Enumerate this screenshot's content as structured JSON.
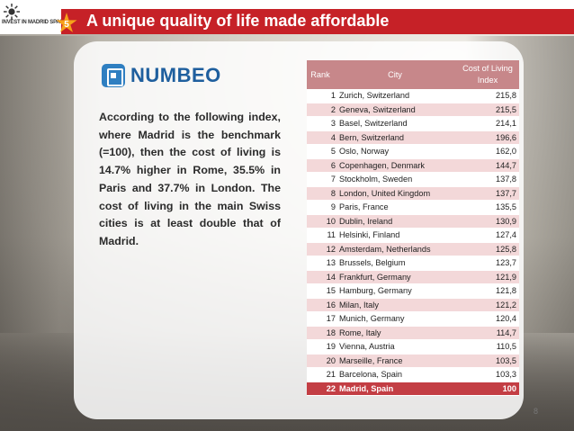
{
  "header": {
    "logo_text": "INVEST IN MADRID SPAIN",
    "badge_number": "5",
    "title": "A unique quality of life made affordable"
  },
  "brand": {
    "name": "NUMBEO",
    "icon": "numbeo-logo-icon",
    "color": "#1f5f9e"
  },
  "paragraph": "According to the following index, where Madrid is the benchmark (=100), then the cost of living is 14.7% higher in Rome, 35.5% in Paris and 37.7% in London. The cost of living in the main Swiss cities is at least double that of Madrid.",
  "table": {
    "headers": {
      "rank": "Rank",
      "city": "City",
      "index": "Cost of Living Index"
    },
    "rows": [
      {
        "rank": "1",
        "city": "Zurich, Switzerland",
        "index": "215,8"
      },
      {
        "rank": "2",
        "city": "Geneva, Switzerland",
        "index": "215,5"
      },
      {
        "rank": "3",
        "city": "Basel, Switzerland",
        "index": "214,1"
      },
      {
        "rank": "4",
        "city": "Bern, Switzerland",
        "index": "196,6"
      },
      {
        "rank": "5",
        "city": "Oslo, Norway",
        "index": "162,0"
      },
      {
        "rank": "6",
        "city": "Copenhagen, Denmark",
        "index": "144,7"
      },
      {
        "rank": "7",
        "city": "Stockholm, Sweden",
        "index": "137,8"
      },
      {
        "rank": "8",
        "city": "London, United Kingdom",
        "index": "137,7"
      },
      {
        "rank": "9",
        "city": "Paris, France",
        "index": "135,5"
      },
      {
        "rank": "10",
        "city": "Dublin, Ireland",
        "index": "130,9"
      },
      {
        "rank": "11",
        "city": "Helsinki, Finland",
        "index": "127,4"
      },
      {
        "rank": "12",
        "city": "Amsterdam, Netherlands",
        "index": "125,8"
      },
      {
        "rank": "13",
        "city": "Brussels, Belgium",
        "index": "123,7"
      },
      {
        "rank": "14",
        "city": "Frankfurt, Germany",
        "index": "121,9"
      },
      {
        "rank": "15",
        "city": "Hamburg, Germany",
        "index": "121,8"
      },
      {
        "rank": "16",
        "city": "Milan, Italy",
        "index": "121,2"
      },
      {
        "rank": "17",
        "city": "Munich, Germany",
        "index": "120,4"
      },
      {
        "rank": "18",
        "city": "Rome, Italy",
        "index": "114,7"
      },
      {
        "rank": "19",
        "city": "Vienna, Austria",
        "index": "110,5"
      },
      {
        "rank": "20",
        "city": "Marseille, France",
        "index": "103,5"
      },
      {
        "rank": "21",
        "city": "Barcelona, Spain",
        "index": "103,3"
      },
      {
        "rank": "22",
        "city": "Madrid, Spain",
        "index": "100",
        "highlight": true
      }
    ]
  },
  "page_number": "8",
  "colors": {
    "title_bar": "#c62127",
    "badge": "#f6a21a",
    "table_header": "#c7878a",
    "row_alt": "#f3d8d9",
    "highlight_row": "#c33e44"
  }
}
